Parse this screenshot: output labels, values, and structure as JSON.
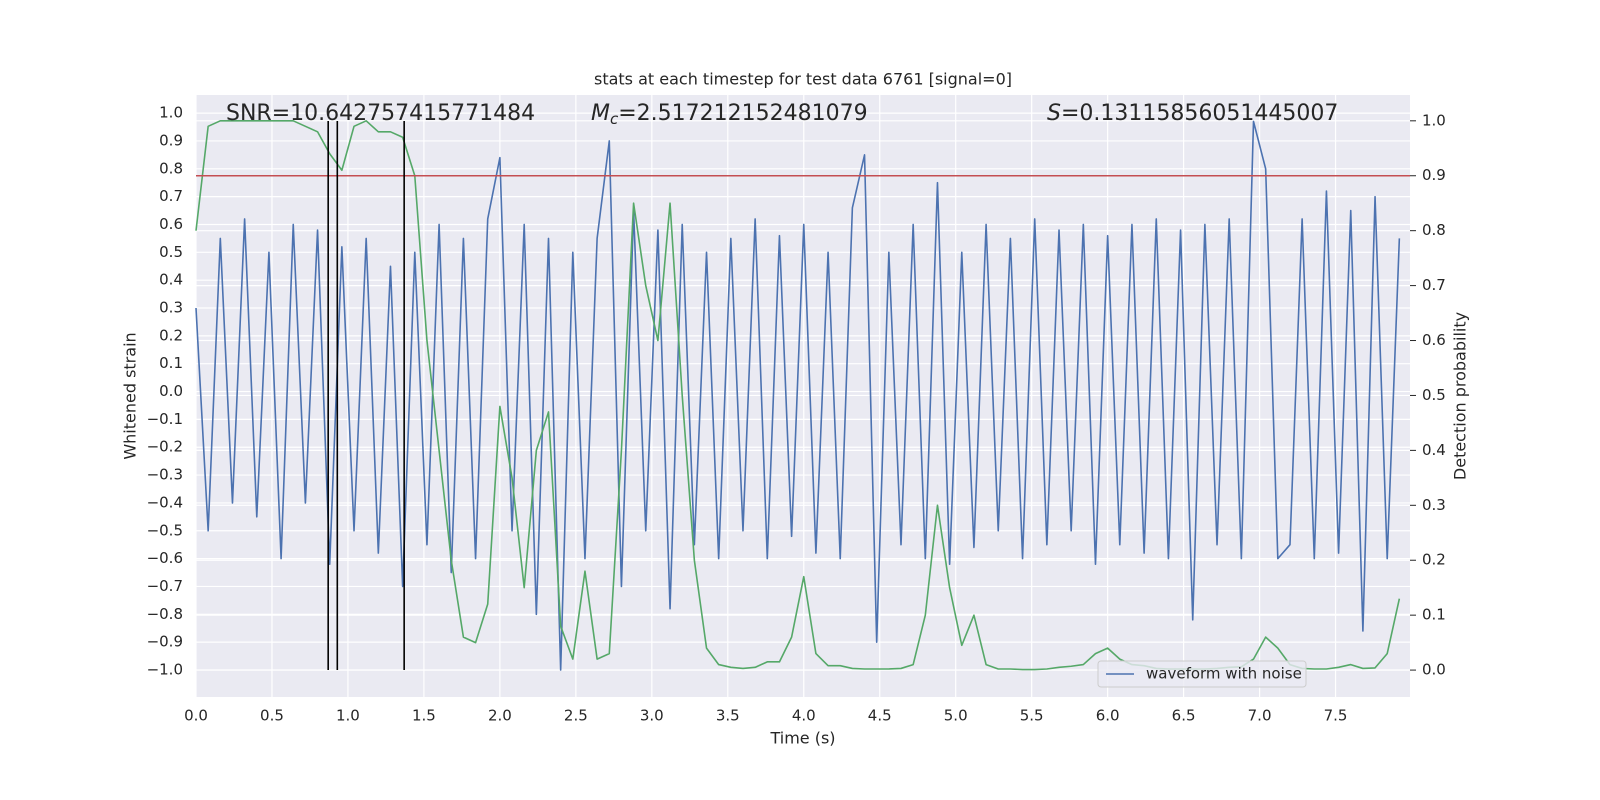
{
  "chart_data": {
    "type": "line",
    "title": "stats at each timestep for test data 6761 [signal=0]",
    "xlabel": "Time (s)",
    "ylabel": "Whitened strain",
    "y2label": "Detection probability",
    "annotations": [
      {
        "text": "SNR=10.642757415771484"
      },
      {
        "italic": "M",
        "sub": "c",
        "text": "=2.517212152481079"
      },
      {
        "italic": "S",
        "text": "=0.13115856051445007"
      }
    ],
    "x": [
      0,
      0.08,
      0.16,
      0.24,
      0.32,
      0.4,
      0.48,
      0.56,
      0.64,
      0.72,
      0.8,
      0.88,
      0.96,
      1.04,
      1.12,
      1.2,
      1.28,
      1.36,
      1.44,
      1.52,
      1.6,
      1.68,
      1.76,
      1.84,
      1.92,
      2.0,
      2.08,
      2.16,
      2.24,
      2.32,
      2.4,
      2.48,
      2.56,
      2.64,
      2.72,
      2.8,
      2.88,
      2.96,
      3.04,
      3.12,
      3.2,
      3.28,
      3.36,
      3.44,
      3.52,
      3.6,
      3.68,
      3.76,
      3.84,
      3.92,
      4.0,
      4.08,
      4.16,
      4.24,
      4.32,
      4.4,
      4.48,
      4.56,
      4.64,
      4.72,
      4.8,
      4.88,
      4.96,
      5.04,
      5.12,
      5.2,
      5.28,
      5.36,
      5.44,
      5.52,
      5.6,
      5.68,
      5.76,
      5.84,
      5.92,
      6.0,
      6.08,
      6.16,
      6.24,
      6.32,
      6.4,
      6.48,
      6.56,
      6.64,
      6.72,
      6.8,
      6.88,
      6.96,
      7.04,
      7.12,
      7.2,
      7.28,
      7.36,
      7.44,
      7.52,
      7.6,
      7.68,
      7.76,
      7.84,
      7.92
    ],
    "series": [
      {
        "name": "waveform with noise",
        "color": "#4c72b0",
        "values": [
          0.3,
          -0.5,
          0.55,
          -0.4,
          0.62,
          -0.45,
          0.5,
          -0.6,
          0.6,
          -0.4,
          0.58,
          -0.62,
          0.52,
          -0.5,
          0.55,
          -0.58,
          0.45,
          -0.7,
          0.5,
          -0.55,
          0.6,
          -0.65,
          0.55,
          -0.6,
          0.62,
          0.84,
          -0.5,
          0.6,
          -0.8,
          0.55,
          -1.0,
          0.5,
          -0.6,
          0.55,
          0.9,
          -0.7,
          0.65,
          -0.5,
          0.58,
          -0.78,
          0.6,
          -0.55,
          0.5,
          -0.6,
          0.55,
          -0.5,
          0.62,
          -0.6,
          0.56,
          -0.52,
          0.6,
          -0.58,
          0.5,
          -0.6,
          0.66,
          0.85,
          -0.9,
          0.5,
          -0.55,
          0.6,
          -0.6,
          0.75,
          -0.62,
          0.5,
          -0.56,
          0.6,
          -0.5,
          0.55,
          -0.6,
          0.62,
          -0.55,
          0.58,
          -0.5,
          0.6,
          -0.62,
          0.56,
          -0.55,
          0.6,
          -0.58,
          0.62,
          -0.6,
          0.58,
          -0.82,
          0.6,
          -0.55,
          0.62,
          -0.6,
          0.97,
          0.8,
          -0.6,
          -0.55,
          0.62,
          -0.6,
          0.72,
          -0.58,
          0.65,
          -0.86,
          0.7,
          -0.6,
          0.55
        ]
      },
      {
        "color": "#55a868",
        "axis": "y2",
        "values": [
          0.8,
          0.99,
          1.0,
          1.0,
          1.0,
          1.0,
          1.0,
          1.0,
          1.0,
          0.99,
          0.98,
          0.94,
          0.91,
          0.99,
          1.0,
          0.98,
          0.98,
          0.97,
          0.9,
          0.6,
          0.4,
          0.2,
          0.06,
          0.05,
          0.12,
          0.48,
          0.35,
          0.15,
          0.4,
          0.47,
          0.08,
          0.02,
          0.18,
          0.02,
          0.03,
          0.4,
          0.85,
          0.7,
          0.6,
          0.85,
          0.5,
          0.2,
          0.04,
          0.01,
          0.005,
          0.003,
          0.005,
          0.015,
          0.015,
          0.06,
          0.17,
          0.03,
          0.008,
          0.008,
          0.003,
          0.002,
          0.002,
          0.002,
          0.003,
          0.01,
          0.1,
          0.3,
          0.15,
          0.045,
          0.1,
          0.01,
          0.002,
          0.002,
          0.001,
          0.001,
          0.002,
          0.005,
          0.007,
          0.01,
          0.03,
          0.04,
          0.02,
          0.01,
          0.008,
          0.003,
          0.002,
          0.002,
          0.002,
          0.002,
          0.003,
          0.005,
          0.006,
          0.02,
          0.06,
          0.04,
          0.01,
          0.003,
          0.002,
          0.002,
          0.005,
          0.01,
          0.003,
          0.004,
          0.03,
          0.13
        ]
      }
    ],
    "threshold": {
      "value": 0.9,
      "axis": "y2",
      "color": "#c44e52"
    },
    "vlines": {
      "x": [
        0.87,
        0.93,
        1.37
      ],
      "color": "#000000"
    },
    "xlim": [
      0,
      7.99
    ],
    "ylim": [
      -1.097,
      1.065
    ],
    "y2lim": [
      -0.049,
      1.047
    ],
    "xticks": [
      {
        "value": 0,
        "label": "0.0"
      },
      {
        "value": 0.5,
        "label": "0.5"
      },
      {
        "value": 1,
        "label": "1.0"
      },
      {
        "value": 1.5,
        "label": "1.5"
      },
      {
        "value": 2,
        "label": "2.0"
      },
      {
        "value": 2.5,
        "label": "2.5"
      },
      {
        "value": 3,
        "label": "3.0"
      },
      {
        "value": 3.5,
        "label": "3.5"
      },
      {
        "value": 4,
        "label": "4.0"
      },
      {
        "value": 4.5,
        "label": "4.5"
      },
      {
        "value": 5,
        "label": "5.0"
      },
      {
        "value": 5.5,
        "label": "5.5"
      },
      {
        "value": 6,
        "label": "6.0"
      },
      {
        "value": 6.5,
        "label": "6.5"
      },
      {
        "value": 7,
        "label": "7.0"
      },
      {
        "value": 7.5,
        "label": "7.5"
      }
    ],
    "yticks": [
      {
        "value": -1,
        "label": "−1.0"
      },
      {
        "value": -0.9,
        "label": "−0.9"
      },
      {
        "value": -0.8,
        "label": "−0.8"
      },
      {
        "value": -0.7,
        "label": "−0.7"
      },
      {
        "value": -0.6,
        "label": "−0.6"
      },
      {
        "value": -0.5,
        "label": "−0.5"
      },
      {
        "value": -0.4,
        "label": "−0.4"
      },
      {
        "value": -0.3,
        "label": "−0.3"
      },
      {
        "value": -0.2,
        "label": "−0.2"
      },
      {
        "value": -0.1,
        "label": "−0.1"
      },
      {
        "value": 0,
        "label": "0.0"
      },
      {
        "value": 0.1,
        "label": "0.1"
      },
      {
        "value": 0.2,
        "label": "0.2"
      },
      {
        "value": 0.3,
        "label": "0.3"
      },
      {
        "value": 0.4,
        "label": "0.4"
      },
      {
        "value": 0.5,
        "label": "0.5"
      },
      {
        "value": 0.6,
        "label": "0.6"
      },
      {
        "value": 0.7,
        "label": "0.7"
      },
      {
        "value": 0.8,
        "label": "0.8"
      },
      {
        "value": 0.9,
        "label": "0.9"
      },
      {
        "value": 1,
        "label": "1.0"
      }
    ],
    "y2ticks": [
      {
        "value": 0,
        "label": "0.0"
      },
      {
        "value": 0.1,
        "label": "0.1"
      },
      {
        "value": 0.2,
        "label": "0.2"
      },
      {
        "value": 0.3,
        "label": "0.3"
      },
      {
        "value": 0.4,
        "label": "0.4"
      },
      {
        "value": 0.5,
        "label": "0.5"
      },
      {
        "value": 0.6,
        "label": "0.6"
      },
      {
        "value": 0.7,
        "label": "0.7"
      },
      {
        "value": 0.8,
        "label": "0.8"
      },
      {
        "value": 0.9,
        "label": "0.9"
      },
      {
        "value": 1,
        "label": "1.0"
      }
    ],
    "grid": true,
    "legend_loc": "lower right"
  }
}
